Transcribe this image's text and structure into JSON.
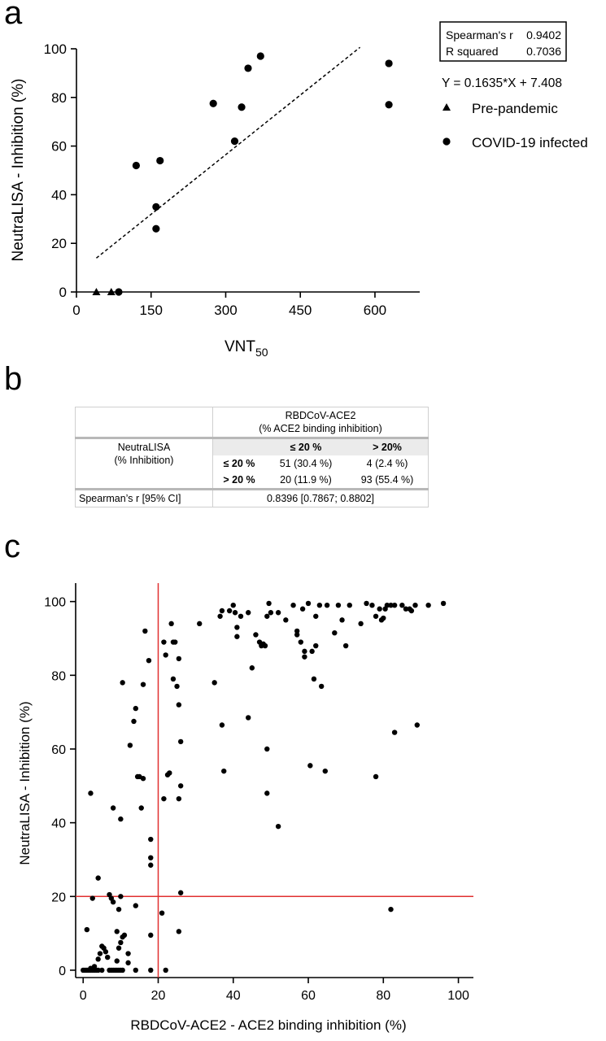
{
  "panel_letters": {
    "a": "a",
    "b": "b",
    "c": "c"
  },
  "chart_data": [
    {
      "type": "scatter",
      "id": "a",
      "xlabel": "VNT",
      "xlabel_sub": "50",
      "ylabel": "NeutraLISA - Inhibition (%)",
      "xlim": [
        0,
        690
      ],
      "ylim": [
        0,
        100
      ],
      "xticks": [
        0,
        150,
        300,
        450,
        600
      ],
      "yticks": [
        0,
        20,
        40,
        60,
        80,
        100
      ],
      "grid": false,
      "legend_position": "right",
      "stats_box": [
        {
          "label": "Spearman's r",
          "value": "0.9402"
        },
        {
          "label": "R squared",
          "value": "0.7036"
        }
      ],
      "equation": "Y = 0.1635*X + 7.408",
      "regression_line": {
        "slope": 0.1635,
        "intercept": 7.408,
        "x_range": [
          40,
          570
        ]
      },
      "series": [
        {
          "name": "Pre-pandemic",
          "marker": "triangle",
          "points": [
            [
              40,
              0
            ],
            [
              70,
              0
            ]
          ]
        },
        {
          "name": "COVID-19 infected",
          "marker": "circle",
          "points": [
            [
              85,
              0
            ],
            [
              120,
              52
            ],
            [
              160,
              35
            ],
            [
              160,
              26
            ],
            [
              168,
              54
            ],
            [
              275,
              77.5
            ],
            [
              318,
              62
            ],
            [
              332,
              76
            ],
            [
              345,
              92
            ],
            [
              370,
              97
            ],
            [
              628,
              94
            ],
            [
              628,
              77
            ]
          ]
        }
      ]
    },
    {
      "type": "table",
      "id": "b",
      "col_header_line1": "RBDCoV-ACE2",
      "col_header_line2": "(% ACE2 binding inhibition)",
      "row_header_line1": "NeutraLISA",
      "row_header_line2": "(% Inhibition)",
      "col_labels": [
        "≤ 20 %",
        "> 20%"
      ],
      "row_labels": [
        "≤ 20 %",
        "> 20 %"
      ],
      "cells": [
        [
          "51 (30.4 %)",
          "4 (2.4 %)"
        ],
        [
          "20 (11.9 %)",
          "93 (55.4 %)"
        ]
      ],
      "footer_label": "Spearman’s r [95% CI]",
      "footer_value": "0.8396 [0.7867; 0.8802]"
    },
    {
      "type": "scatter",
      "id": "c",
      "xlabel": "RBDCoV-ACE2 - ACE2 binding inhibition (%)",
      "ylabel": "NeutraLISA - Inhibition (%)",
      "xlim": [
        -2,
        104
      ],
      "ylim": [
        -2,
        105
      ],
      "xticks": [
        0,
        20,
        40,
        60,
        80,
        100
      ],
      "yticks": [
        0,
        20,
        40,
        60,
        80,
        100
      ],
      "grid": false,
      "threshold_color": "#e03030",
      "thresholds": {
        "x": 20,
        "y": 20
      },
      "series": [
        {
          "name": "",
          "points": [
            [
              0,
              0
            ],
            [
              0.5,
              0
            ],
            [
              1,
              0
            ],
            [
              1.5,
              0
            ],
            [
              2,
              0
            ],
            [
              2.5,
              0
            ],
            [
              3,
              0
            ],
            [
              3.5,
              0
            ],
            [
              4,
              0
            ],
            [
              5,
              0
            ],
            [
              7,
              0
            ],
            [
              7.5,
              0
            ],
            [
              8,
              0
            ],
            [
              8.5,
              0
            ],
            [
              9,
              0
            ],
            [
              9.5,
              0
            ],
            [
              10,
              0
            ],
            [
              10.5,
              0
            ],
            [
              14,
              0
            ],
            [
              18,
              0
            ],
            [
              22,
              0
            ],
            [
              2,
              0.5
            ],
            [
              3,
              1
            ],
            [
              4,
              3
            ],
            [
              4.5,
              4.5
            ],
            [
              5,
              6.5
            ],
            [
              5.5,
              6
            ],
            [
              6,
              5
            ],
            [
              6.5,
              3.5
            ],
            [
              9,
              2.5
            ],
            [
              9.5,
              6
            ],
            [
              10,
              7.5
            ],
            [
              10.5,
              9
            ],
            [
              11,
              9.5
            ],
            [
              12,
              2
            ],
            [
              1,
              11
            ],
            [
              2,
              48
            ],
            [
              2.5,
              19.5
            ],
            [
              4,
              25
            ],
            [
              7,
              20.5
            ],
            [
              7.5,
              19.5
            ],
            [
              8,
              18.5
            ],
            [
              9,
              10.5
            ],
            [
              9.5,
              16.5
            ],
            [
              10,
              20
            ],
            [
              12,
              4.5
            ],
            [
              14,
              17.5
            ],
            [
              18,
              9.5
            ],
            [
              21,
              15.5
            ],
            [
              25.5,
              10.5
            ],
            [
              26,
              21
            ],
            [
              8,
              44
            ],
            [
              10,
              41
            ],
            [
              12.5,
              61
            ],
            [
              13.5,
              67.5
            ],
            [
              14,
              71
            ],
            [
              14.5,
              52.5
            ],
            [
              15,
              52.5
            ],
            [
              15.5,
              44
            ],
            [
              16,
              77.5
            ],
            [
              16,
              52
            ],
            [
              16.5,
              92
            ],
            [
              17.5,
              84
            ],
            [
              18,
              28.5
            ],
            [
              18,
              30.5
            ],
            [
              18,
              35.5
            ],
            [
              21.5,
              89
            ],
            [
              21.5,
              46.5
            ],
            [
              22,
              85.5
            ],
            [
              22.5,
              53
            ],
            [
              23,
              53.5
            ],
            [
              23.5,
              94
            ],
            [
              24,
              89
            ],
            [
              24,
              79
            ],
            [
              24.5,
              89
            ],
            [
              25,
              77
            ],
            [
              25.5,
              72
            ],
            [
              25.5,
              84.5
            ],
            [
              26,
              62
            ],
            [
              26,
              50
            ],
            [
              25.5,
              46.5
            ],
            [
              10.5,
              78
            ],
            [
              31,
              94
            ],
            [
              35,
              78
            ],
            [
              36.5,
              96
            ],
            [
              37,
              97.5
            ],
            [
              37,
              66.5
            ],
            [
              37.5,
              54
            ],
            [
              39,
              97.5
            ],
            [
              40,
              99
            ],
            [
              40.5,
              97
            ],
            [
              41,
              90.5
            ],
            [
              41,
              93
            ],
            [
              42,
              96
            ],
            [
              44,
              97
            ],
            [
              44,
              68.5
            ],
            [
              45,
              82
            ],
            [
              46,
              91
            ],
            [
              47,
              89
            ],
            [
              47.5,
              88
            ],
            [
              48,
              88.5
            ],
            [
              48.5,
              88
            ],
            [
              49,
              96
            ],
            [
              49,
              60
            ],
            [
              49,
              48
            ],
            [
              49.5,
              99.5
            ],
            [
              50,
              97
            ],
            [
              52,
              97
            ],
            [
              52,
              39
            ],
            [
              54,
              95
            ],
            [
              56,
              99
            ],
            [
              57,
              91
            ],
            [
              57,
              92
            ],
            [
              58,
              89
            ],
            [
              58.5,
              98
            ],
            [
              59,
              85
            ],
            [
              59,
              86.5
            ],
            [
              60,
              99.5
            ],
            [
              60.5,
              55.5
            ],
            [
              61,
              86.5
            ],
            [
              61.5,
              79
            ],
            [
              62,
              96
            ],
            [
              62,
              88
            ],
            [
              63,
              99
            ],
            [
              63.5,
              77
            ],
            [
              64.5,
              54
            ],
            [
              65,
              99
            ],
            [
              67,
              91.5
            ],
            [
              68,
              99
            ],
            [
              69,
              95
            ],
            [
              70,
              88
            ],
            [
              71,
              99
            ],
            [
              74,
              94
            ],
            [
              77,
              99
            ],
            [
              78,
              96
            ],
            [
              78,
              52.5
            ],
            [
              79,
              98
            ],
            [
              79.5,
              95
            ],
            [
              80,
              95.5
            ],
            [
              80.5,
              98
            ],
            [
              81,
              99
            ],
            [
              82,
              99
            ],
            [
              83,
              99
            ],
            [
              85,
              99
            ],
            [
              86,
              98
            ],
            [
              87,
              98
            ],
            [
              87.5,
              97.5
            ],
            [
              88.5,
              99
            ],
            [
              89,
              66.5
            ],
            [
              83,
              64.5
            ],
            [
              82,
              16.5
            ],
            [
              96,
              99.5
            ],
            [
              92,
              99
            ],
            [
              75.5,
              99.5
            ]
          ]
        }
      ]
    }
  ]
}
